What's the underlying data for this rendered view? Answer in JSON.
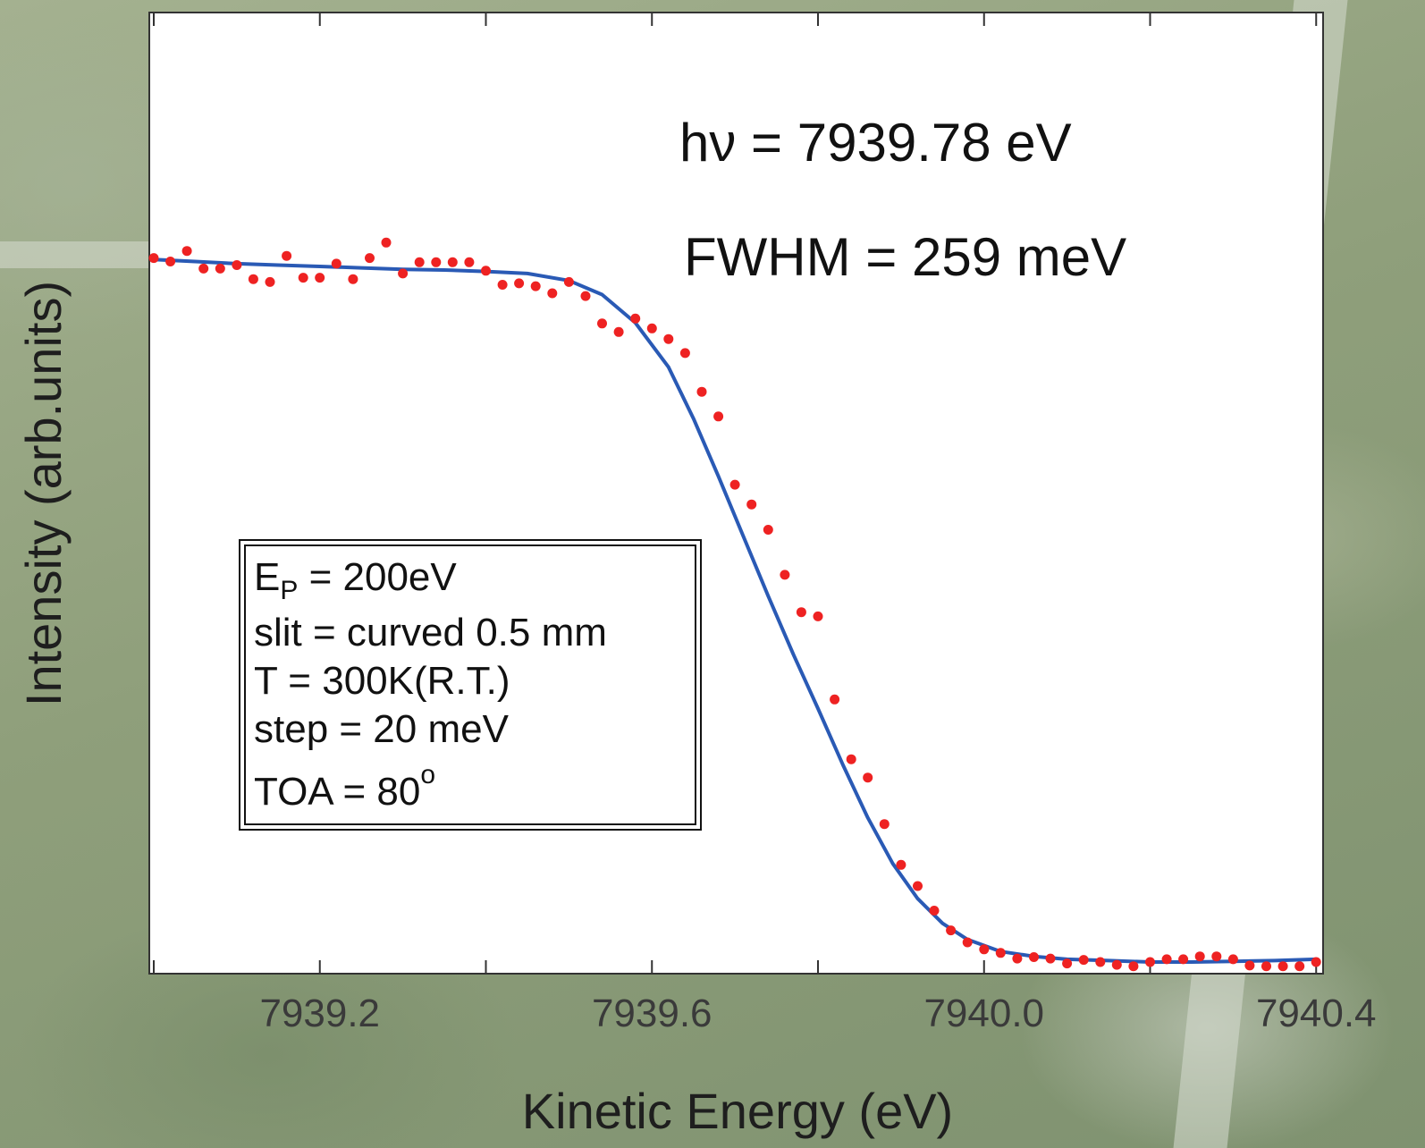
{
  "chart_data": {
    "type": "scatter",
    "title": "",
    "xlabel": "Kinetic Energy (eV)",
    "ylabel": "Intensity (arb.units)",
    "xlim": [
      7939.0,
      7940.42
    ],
    "ylim": [
      0.0,
      1.07
    ],
    "x_ticks": [
      7939.0,
      7939.2,
      7939.4,
      7939.6,
      7939.8,
      7940.0,
      7940.2,
      7940.4
    ],
    "x_tick_labels": [
      "7939.2",
      "7939.6",
      "7940.0",
      "7940.4"
    ],
    "x_tick_label_values": [
      7939.2,
      7939.6,
      7940.0,
      7940.4
    ],
    "grid": false,
    "annotations": {
      "hv": "hν = 7939.78 eV",
      "fwhm": "FWHM = 259 meV"
    },
    "info_box": {
      "ep_prefix": "E",
      "ep_sub": "P",
      "ep_suffix": " = 200eV",
      "slit": "slit = curved 0.5 mm",
      "temp": "T = 300K(R.T.)",
      "step": "step = 20 meV",
      "toa_text": "TOA = 80",
      "toa_sup": "o"
    },
    "series": [
      {
        "kind": "points",
        "color": "#ee2222",
        "x": [
          7939.0,
          7939.02,
          7939.04,
          7939.06,
          7939.08,
          7939.1,
          7939.12,
          7939.14,
          7939.16,
          7939.18,
          7939.2,
          7939.22,
          7939.24,
          7939.26,
          7939.28,
          7939.3,
          7939.32,
          7939.34,
          7939.36,
          7939.38,
          7939.4,
          7939.42,
          7939.44,
          7939.46,
          7939.48,
          7939.5,
          7939.52,
          7939.54,
          7939.56,
          7939.58,
          7939.6,
          7939.62,
          7939.64,
          7939.66,
          7939.68,
          7939.7,
          7939.72,
          7939.74,
          7939.76,
          7939.78,
          7939.8,
          7939.82,
          7939.84,
          7939.86,
          7939.88,
          7939.9,
          7939.92,
          7939.94,
          7939.96,
          7939.98,
          7940.0,
          7940.02,
          7940.04,
          7940.06,
          7940.08,
          7940.1,
          7940.12,
          7940.14,
          7940.16,
          7940.18,
          7940.2,
          7940.22,
          7940.24,
          7940.26,
          7940.28,
          7940.3,
          7940.32,
          7940.34,
          7940.36,
          7940.38,
          7940.4
        ],
        "y": [
          1.0,
          0.995,
          1.01,
          0.985,
          0.985,
          0.99,
          0.97,
          0.966,
          1.003,
          0.972,
          0.972,
          0.992,
          0.97,
          1.0,
          1.022,
          0.978,
          0.994,
          0.994,
          0.994,
          0.994,
          0.982,
          0.962,
          0.964,
          0.96,
          0.95,
          0.966,
          0.946,
          0.907,
          0.895,
          0.914,
          0.9,
          0.885,
          0.865,
          0.81,
          0.775,
          0.678,
          0.65,
          0.614,
          0.55,
          0.497,
          0.491,
          0.373,
          0.288,
          0.262,
          0.196,
          0.138,
          0.108,
          0.073,
          0.045,
          0.028,
          0.018,
          0.013,
          0.005,
          0.007,
          0.005,
          -0.002,
          0.003,
          0.0,
          -0.004,
          -0.006,
          0.0,
          0.004,
          0.004,
          0.008,
          0.008,
          0.004,
          -0.005,
          -0.006,
          -0.006,
          -0.006,
          0.0
        ]
      },
      {
        "kind": "fit",
        "color": "#2a5ab5",
        "x": [
          7939.0,
          7939.05,
          7939.1,
          7939.15,
          7939.2,
          7939.25,
          7939.3,
          7939.35,
          7939.4,
          7939.45,
          7939.5,
          7939.54,
          7939.58,
          7939.62,
          7939.65,
          7939.68,
          7939.71,
          7939.74,
          7939.77,
          7939.8,
          7939.83,
          7939.86,
          7939.89,
          7939.92,
          7939.95,
          7939.98,
          7940.02,
          7940.06,
          7940.1,
          7940.15,
          7940.2,
          7940.25,
          7940.3,
          7940.35,
          7940.4
        ],
        "y": [
          0.998,
          0.995,
          0.992,
          0.99,
          0.988,
          0.986,
          0.984,
          0.983,
          0.981,
          0.978,
          0.968,
          0.948,
          0.908,
          0.845,
          0.772,
          0.69,
          0.605,
          0.52,
          0.438,
          0.36,
          0.28,
          0.205,
          0.14,
          0.09,
          0.055,
          0.032,
          0.015,
          0.008,
          0.004,
          0.002,
          0.0,
          0.0,
          0.001,
          0.002,
          0.004
        ]
      }
    ]
  }
}
